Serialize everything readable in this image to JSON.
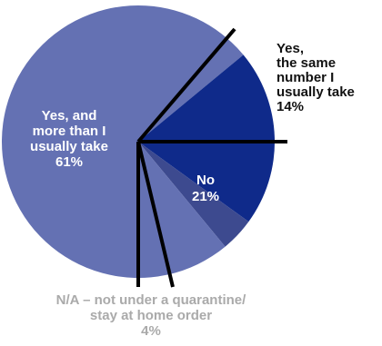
{
  "chart_data": {
    "type": "pie",
    "start_angle_deg": 90,
    "direction": "clockwise",
    "slices": [
      {
        "label_lines": [
          "Yes,",
          "the same",
          "number I",
          "usually take"
        ],
        "value_label": "14%",
        "value": 14,
        "color": "#6471b3"
      },
      {
        "label_lines": [
          "No"
        ],
        "value_label": "21%",
        "value": 21,
        "color": "#0f2a8a"
      },
      {
        "label_lines": [
          "N/A – not under a quarantine/",
          "stay at home order"
        ],
        "value_label": "4%",
        "value": 4,
        "color": "#3d4a8f"
      },
      {
        "label_lines": [
          "Yes, and",
          "more than I",
          "usually take"
        ],
        "value_label": "61%",
        "value": 61,
        "color": "#6471b3"
      }
    ],
    "label_colors": [
      "#111111",
      "#ffffff",
      "#aaaaaa",
      "#ffffff"
    ],
    "leader_color": "#000000"
  }
}
